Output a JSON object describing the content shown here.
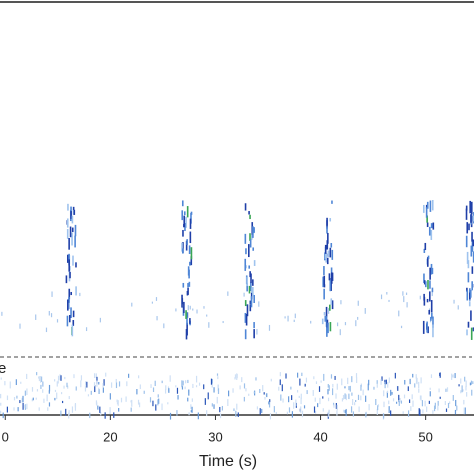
{
  "chart_data": {
    "type": "spectrogram",
    "x_label": "Time (s)",
    "side_label": "e",
    "xlim": [
      9.5,
      54.6
    ],
    "xticks": [
      {
        "value": 10,
        "label": "0"
      },
      20,
      30,
      40,
      50
    ],
    "calls": {
      "x": [
        16.2,
        27.2,
        33.2,
        40.6,
        50.2,
        54.2
      ],
      "color": "#1f3fa8"
    }
  }
}
